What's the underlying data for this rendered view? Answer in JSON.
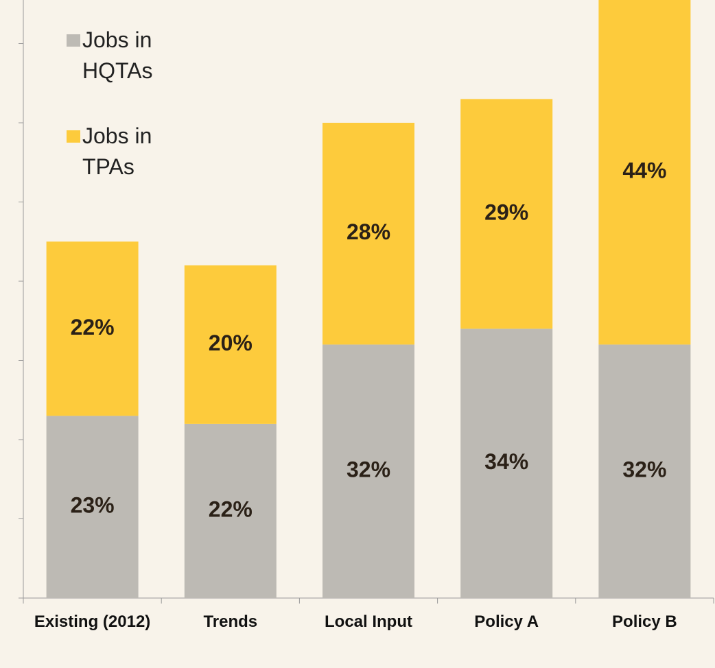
{
  "chart_data": {
    "type": "stacked_bar",
    "categories": [
      "Existing (2012)",
      "Trends",
      "Local Input",
      "Policy A",
      "Policy B"
    ],
    "series": [
      {
        "name": "Jobs in HQTAs",
        "color": "#bdbab4",
        "values": [
          23,
          22,
          32,
          34,
          32
        ],
        "value_labels": [
          "23%",
          "22%",
          "32%",
          "34%",
          "32%"
        ]
      },
      {
        "name": "Jobs in TPAs",
        "color": "#fdcb3c",
        "values": [
          22,
          20,
          28,
          29,
          44
        ],
        "value_labels": [
          "22%",
          "20%",
          "28%",
          "29%",
          "44%"
        ]
      }
    ],
    "ylim": [
      0,
      75.5
    ],
    "yticks": [
      0,
      10,
      20,
      30,
      40,
      50,
      60,
      70
    ],
    "legend": "upper left",
    "background": "#f8f3ea"
  }
}
